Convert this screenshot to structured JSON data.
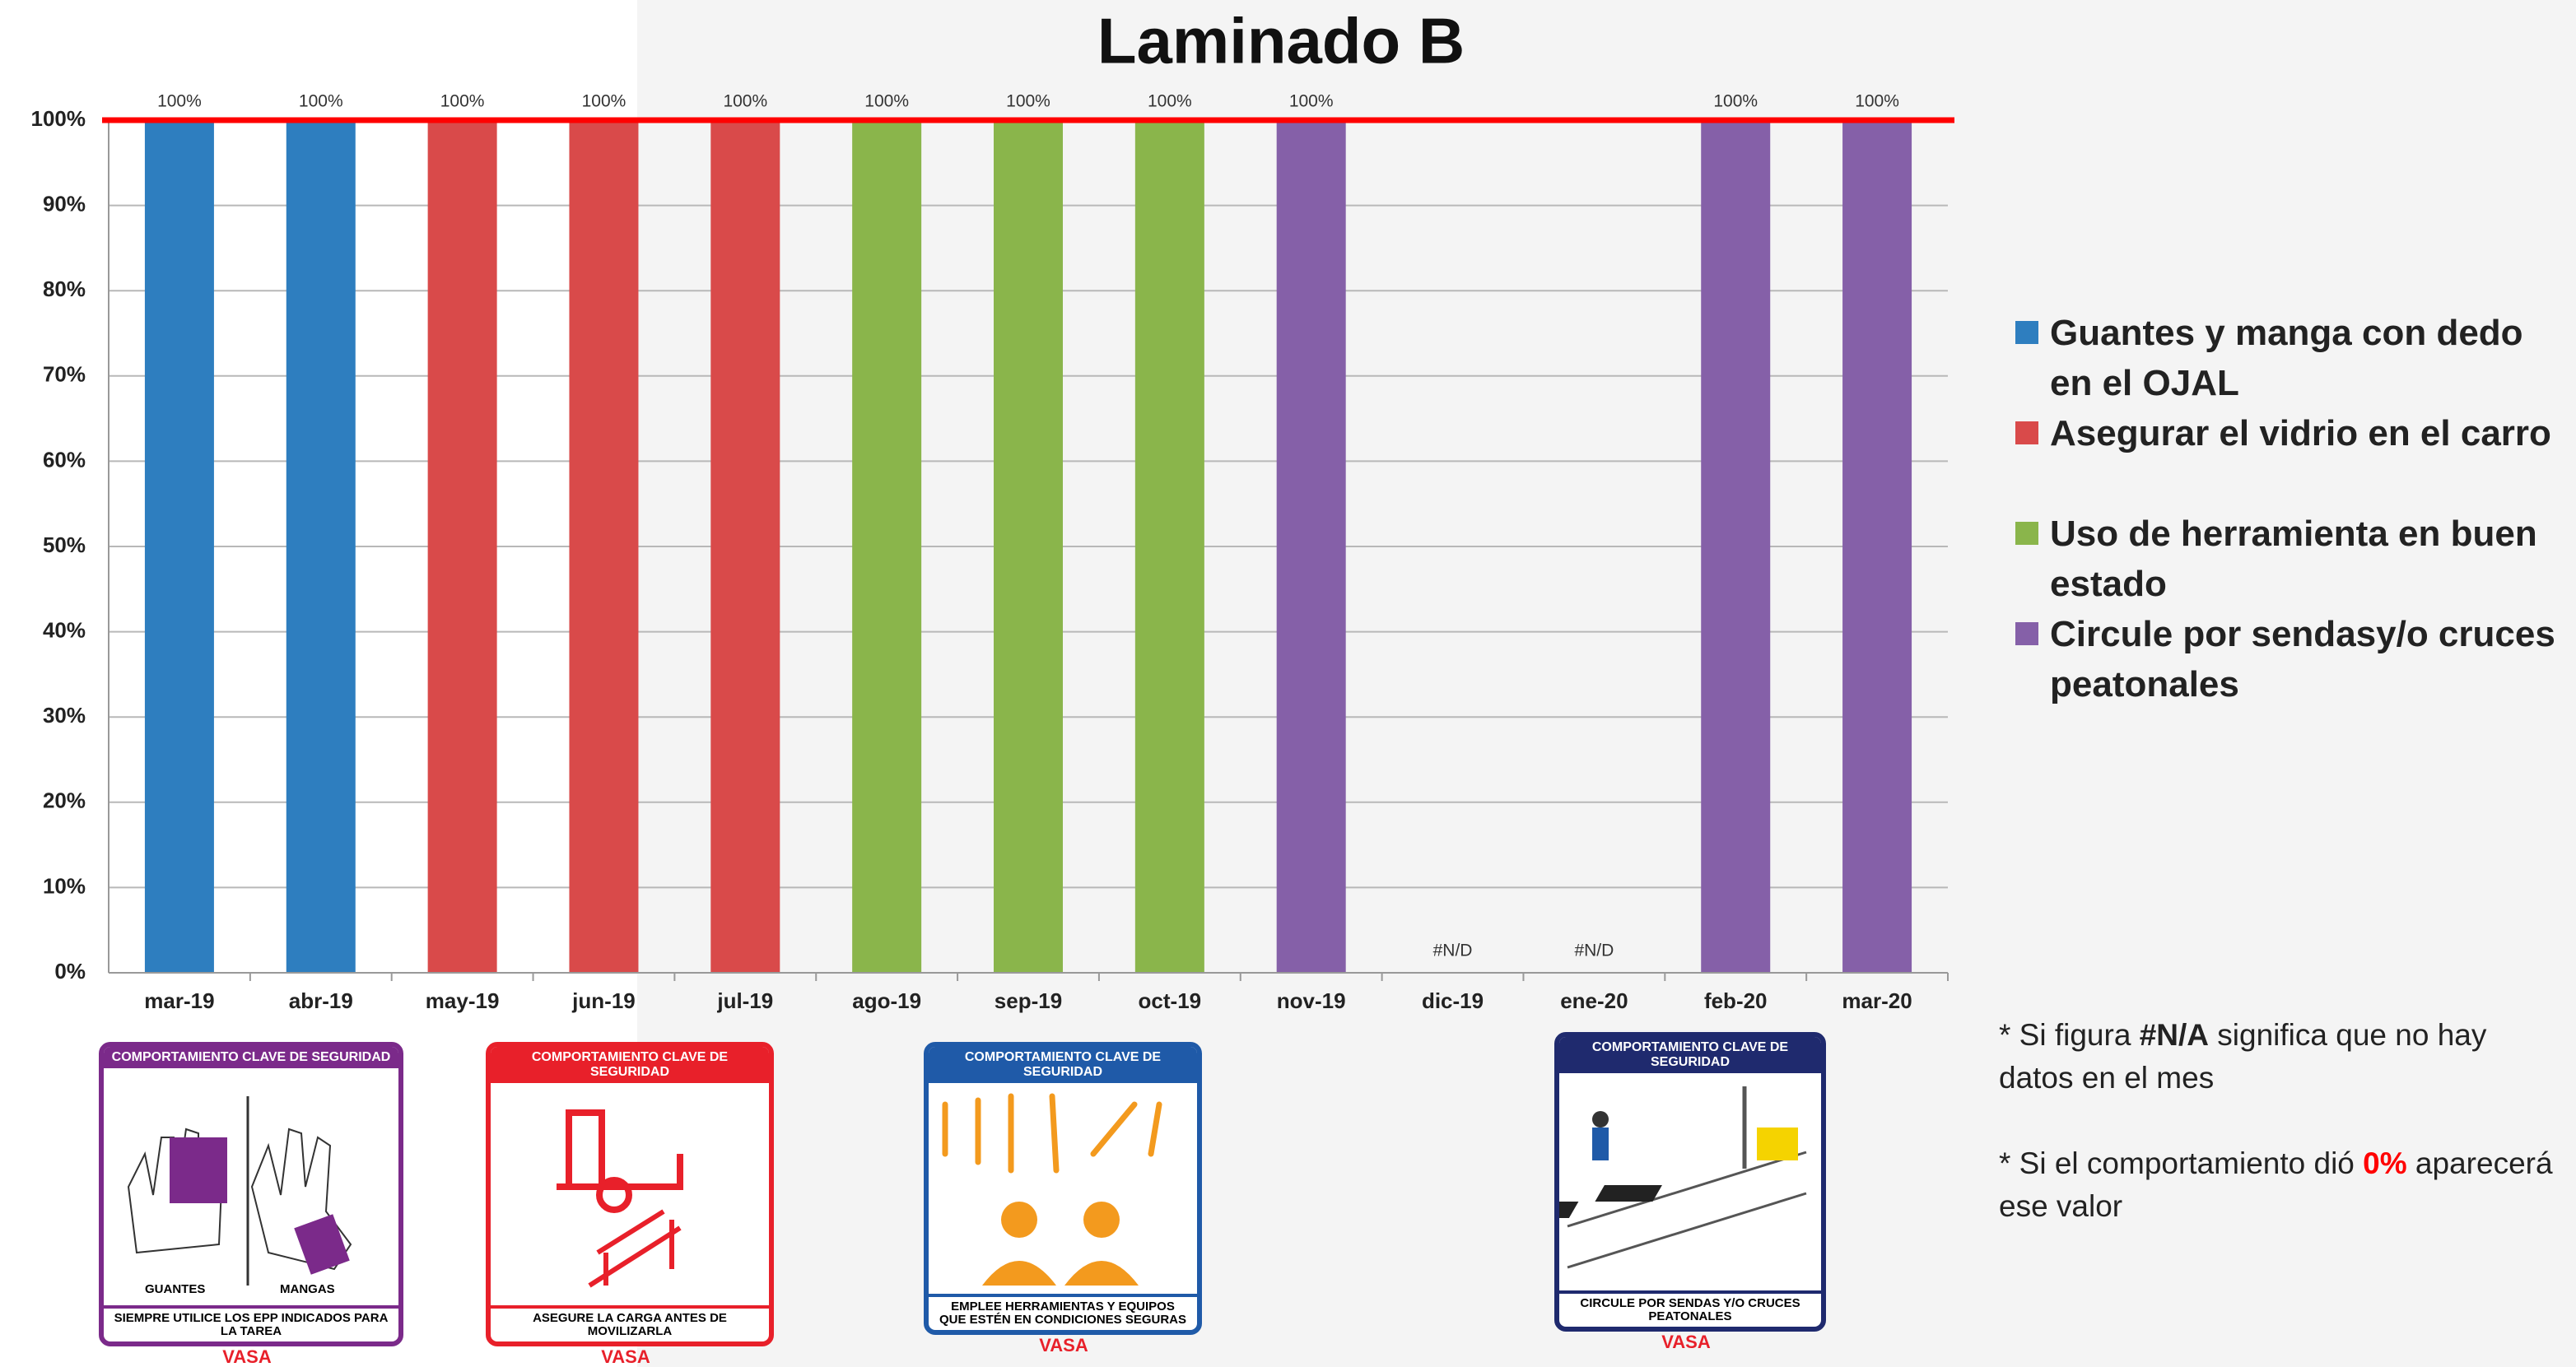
{
  "chart_data": {
    "type": "bar",
    "title": "Laminado B",
    "categories": [
      "mar-19",
      "abr-19",
      "may-19",
      "jun-19",
      "jul-19",
      "ago-19",
      "sep-19",
      "oct-19",
      "nov-19",
      "dic-19",
      "ene-20",
      "feb-20",
      "mar-20"
    ],
    "values": [
      100,
      100,
      100,
      100,
      100,
      100,
      100,
      100,
      100,
      null,
      null,
      100,
      100
    ],
    "value_labels": [
      "100%",
      "100%",
      "100%",
      "100%",
      "100%",
      "100%",
      "100%",
      "100%",
      "100%",
      "#N/D",
      "#N/D",
      "100%",
      "100%"
    ],
    "bar_colors": [
      "#2e7ebf",
      "#2e7ebf",
      "#d94a4a",
      "#d94a4a",
      "#d94a4a",
      "#8ab54b",
      "#8ab54b",
      "#8ab54b",
      "#8560a8",
      null,
      null,
      "#8560a8",
      "#8560a8"
    ],
    "ylim": [
      0,
      100
    ],
    "yticks": [
      {
        "value": 0,
        "label": "0%"
      },
      {
        "value": 10,
        "label": "10%"
      },
      {
        "value": 20,
        "label": "20%"
      },
      {
        "value": 30,
        "label": "30%"
      },
      {
        "value": 40,
        "label": "40%"
      },
      {
        "value": 50,
        "label": "50%"
      },
      {
        "value": 60,
        "label": "60%"
      },
      {
        "value": 70,
        "label": "70%"
      },
      {
        "value": 80,
        "label": "80%"
      },
      {
        "value": 90,
        "label": "90%"
      },
      {
        "value": 100,
        "label": "100%"
      }
    ],
    "grid": true,
    "target_line": {
      "value": 100,
      "color": "#ff0000"
    },
    "legend": [
      {
        "name": "Guantes y manga con dedo en el OJAL",
        "color": "#2e7ebf"
      },
      {
        "name": "Asegurar el vidrio en el carro",
        "color": "#d94a4a"
      },
      {
        "name": "Uso de herramienta en buen estado",
        "color": "#8ab54b"
      },
      {
        "name": "Circule por sendasy/o cruces peatonales",
        "color": "#8560a8"
      }
    ]
  },
  "notes": [
    {
      "parts": [
        "* Si figura ",
        "#N/A",
        " significa que no hay datos en el mes"
      ]
    },
    {
      "parts": [
        "* Si el comportamiento  dió ",
        "0%",
        " aparecerá ese valor"
      ]
    }
  ],
  "posters": [
    {
      "header": "COMPORTAMIENTO CLAVE DE SEGURIDAD",
      "captions": [
        "GUANTES",
        "MANGAS"
      ],
      "footer": "SIEMPRE UTILICE LOS EPP INDICADOS PARA LA TAREA",
      "brand": "VASA"
    },
    {
      "header": "COMPORTAMIENTO CLAVE DE SEGURIDAD",
      "captions": [],
      "footer": "ASEGURE LA CARGA ANTES DE MOVILIZARLA",
      "brand": "VASA"
    },
    {
      "header": "COMPORTAMIENTO CLAVE DE SEGURIDAD",
      "captions": [],
      "footer": "EMPLEE HERRAMIENTAS Y EQUIPOS QUE ESTÉN EN CONDICIONES SEGURAS",
      "brand": "VASA"
    },
    {
      "header": "COMPORTAMIENTO CLAVE DE SEGURIDAD",
      "captions": [],
      "footer": "CIRCULE POR SENDAS Y/O CRUCES PEATONALES",
      "brand": "VASA"
    }
  ]
}
